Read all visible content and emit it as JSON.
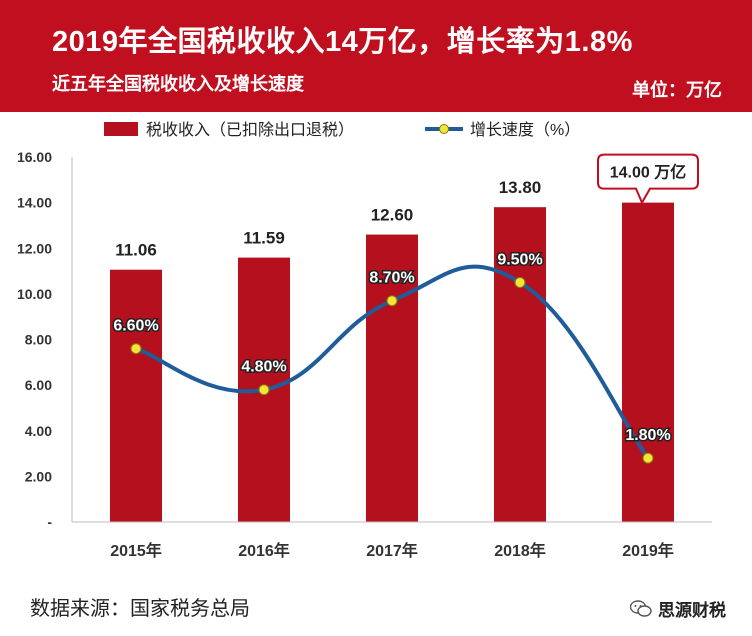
{
  "header": {
    "title": "2019年全国税收收入14万亿，增长率为1.8%",
    "subtitle": "近五年全国税收收入及增长速度",
    "unit": "单位：万亿"
  },
  "chart_data": {
    "type": "bar",
    "categories": [
      "2015年",
      "2016年",
      "2017年",
      "2018年",
      "2019年"
    ],
    "series": [
      {
        "name": "税收收入（已扣除出口退税）",
        "kind": "bar",
        "values": [
          11.06,
          11.59,
          12.6,
          13.8,
          14.0
        ],
        "labels": [
          "11.06",
          "11.59",
          "12.60",
          "13.80",
          "14.00 万亿"
        ]
      },
      {
        "name": "增长速度（%）",
        "kind": "line",
        "values": [
          6.6,
          4.8,
          8.7,
          9.5,
          1.8
        ],
        "labels": [
          "6.60%",
          "4.80%",
          "8.70%",
          "9.50%",
          "1.80%"
        ]
      }
    ],
    "yticks": [
      "16.00",
      "14.00",
      "12.00",
      "10.00",
      "8.00",
      "6.00",
      "4.00",
      "2.00",
      "-"
    ],
    "ylim": [
      0,
      16
    ],
    "legend": "top",
    "colors": {
      "bar": "#b5101d",
      "line": "#1f5c99",
      "marker": "#f3e33b",
      "callout": "#c00f1f"
    }
  },
  "footer": {
    "source": "数据来源：国家税务总局",
    "brand": "思源财税"
  }
}
